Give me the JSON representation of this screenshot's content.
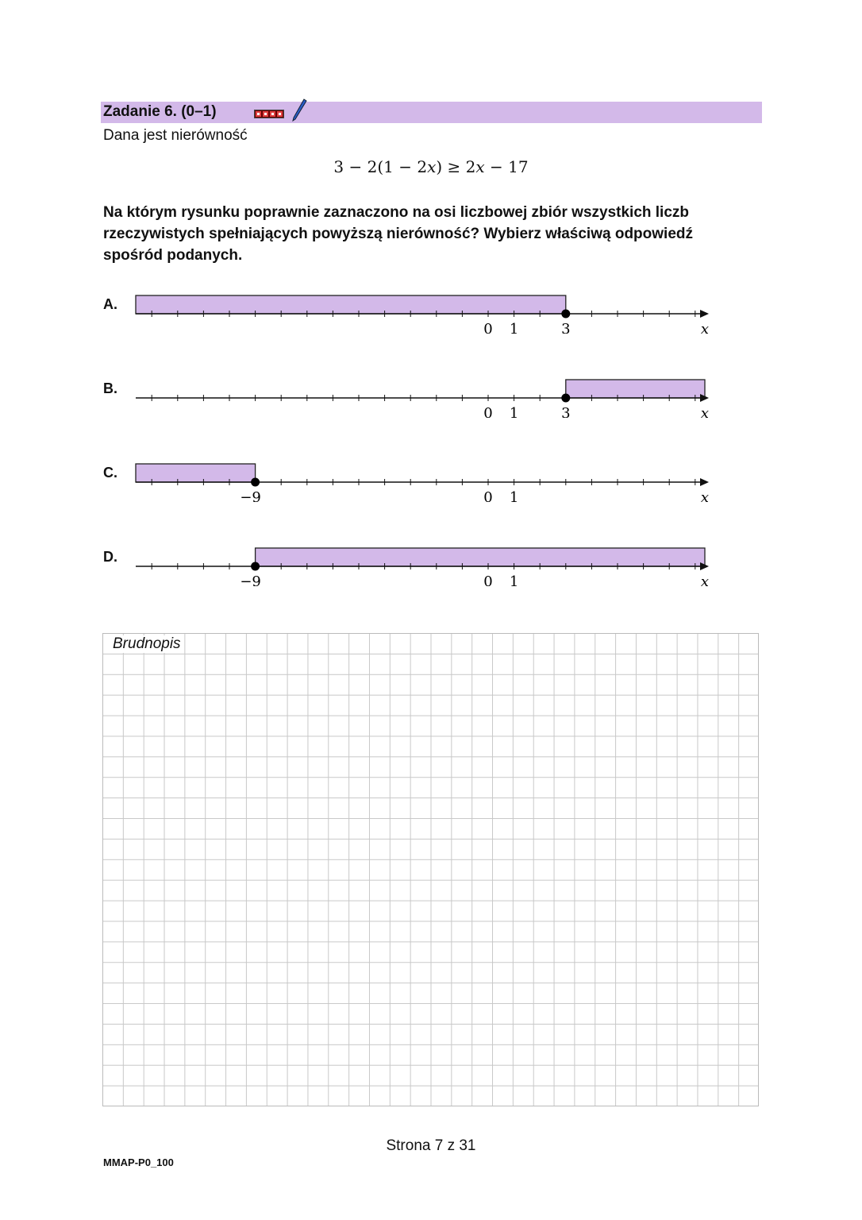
{
  "header": {
    "title": "Zadanie 6. (0–1)",
    "accent": "#d3b9e9"
  },
  "intro": "Dana jest nierówność",
  "formula": "3 − 2(1 − 2𝑥) ≥ 2𝑥 − 17",
  "question": "Na którym rysunku poprawnie zaznaczono na osi liczbowej zbiór wszystkich liczb rzeczywistych spełniających powyższą nierówność? Wybierz właściwą odpowiedź spośród podanych.",
  "options": [
    {
      "label": "A.",
      "endpoint": 3,
      "direction": "left",
      "tick_labels": [
        "0",
        "1",
        "3"
      ],
      "axis_label": "x"
    },
    {
      "label": "B.",
      "endpoint": 3,
      "direction": "right",
      "tick_labels": [
        "0",
        "1",
        "3"
      ],
      "axis_label": "x"
    },
    {
      "label": "C.",
      "endpoint": -9,
      "direction": "left",
      "tick_labels": [
        "−9",
        "0",
        "1"
      ],
      "axis_label": "x"
    },
    {
      "label": "D.",
      "endpoint": -9,
      "direction": "right",
      "tick_labels": [
        "−9",
        "0",
        "1"
      ],
      "axis_label": "x"
    }
  ],
  "scratch_label": "Brudnopis",
  "footer": "Strona 7 z 31",
  "code": "MMAP-P0_100"
}
